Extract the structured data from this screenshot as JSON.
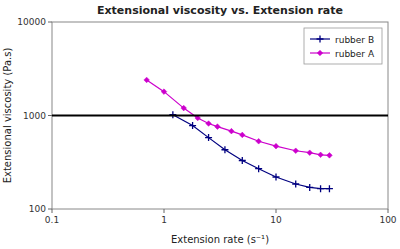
{
  "chart_data": {
    "type": "line",
    "title": "Extensional viscosity vs. Extension rate",
    "x_label": "Extension rate (s⁻¹)",
    "y_label": "Extensional viscosity (Pa.s)",
    "log": true,
    "xlim": [
      0.1,
      100
    ],
    "ylim": [
      100,
      10000
    ],
    "xticks": [
      0.1,
      1,
      10,
      100
    ],
    "yticks": [
      100,
      1000,
      10000
    ],
    "grid": false,
    "legend": "upper right",
    "series": [
      {
        "name": "rubber B",
        "color": "#000080",
        "marker": "plus",
        "x": [
          1.2,
          1.8,
          2.5,
          3.5,
          5.0,
          7.0,
          10.0,
          15.0,
          20.0,
          25.0,
          30.0
        ],
        "values": [
          1020,
          780,
          580,
          430,
          330,
          270,
          220,
          185,
          170,
          165,
          165
        ]
      },
      {
        "name": "rubber A",
        "color": "#CC00CC",
        "marker": "diamond",
        "x": [
          0.7,
          1.0,
          1.5,
          2.0,
          2.5,
          3.0,
          4.0,
          5.0,
          7.0,
          10.0,
          15.0,
          20.0,
          25.0,
          30.0
        ],
        "values": [
          2400,
          1800,
          1200,
          940,
          820,
          760,
          680,
          620,
          530,
          470,
          420,
          400,
          380,
          375
        ]
      },
      {
        "type": "hline",
        "color": "#000000",
        "values": [
          1000
        ]
      }
    ]
  }
}
